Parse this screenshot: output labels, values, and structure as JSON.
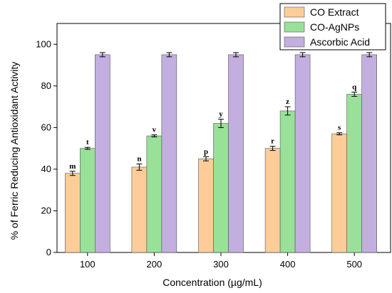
{
  "chart_data": {
    "type": "bar",
    "title": "",
    "xlabel": "Concentration (µg/mL)",
    "ylabel": "% of Ferric Reducing Antioxidant Activity",
    "categories": [
      "100",
      "200",
      "300",
      "400",
      "500"
    ],
    "ylim": [
      0,
      110
    ],
    "yticks": [
      0,
      20,
      40,
      60,
      80,
      100
    ],
    "grid": false,
    "legend_position": "top-right",
    "series": [
      {
        "name": "CO Extract",
        "color": "#fdcc99",
        "values": [
          38,
          41,
          45,
          50,
          57
        ],
        "errors": [
          1,
          1.5,
          1,
          1,
          0.5
        ],
        "labels": [
          "m",
          "n",
          "p",
          "r",
          "s"
        ]
      },
      {
        "name": "CO-AgNPs",
        "color": "#99e099",
        "values": [
          50,
          56,
          62,
          68,
          76
        ],
        "errors": [
          0.5,
          0.5,
          2,
          2,
          1
        ],
        "labels": [
          "t",
          "v",
          "y",
          "z",
          "q"
        ]
      },
      {
        "name": "Ascorbic Acid",
        "color": "#c3aee0",
        "values": [
          95,
          95,
          95,
          95,
          95
        ],
        "errors": [
          1,
          1,
          1,
          1,
          1
        ],
        "labels": []
      }
    ]
  }
}
